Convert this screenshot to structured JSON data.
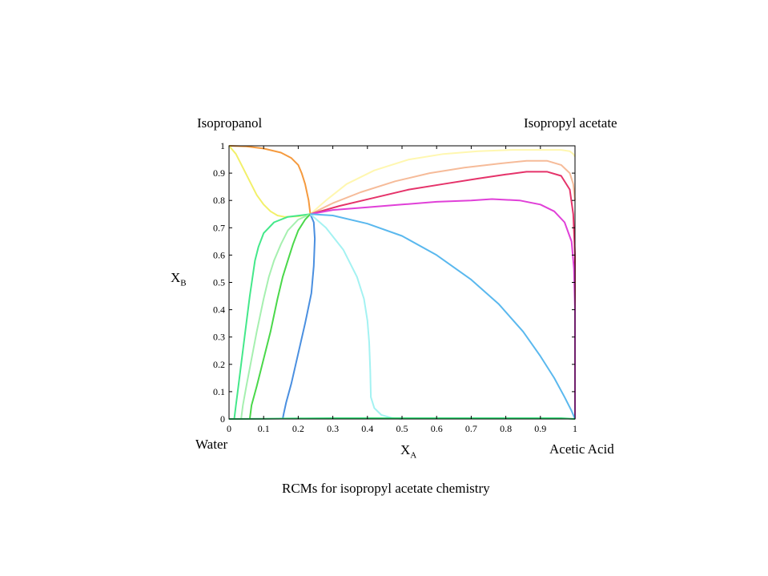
{
  "chart_data": {
    "type": "line",
    "title": "",
    "caption": "RCMs for isopropyl acetate chemistry",
    "xlabel": {
      "text": "X",
      "sub": "A"
    },
    "ylabel": {
      "text": "X",
      "sub": "B"
    },
    "xlim": [
      0,
      1
    ],
    "ylim": [
      0,
      1
    ],
    "grid": false,
    "xticks": [
      "0",
      "0.1",
      "0.2",
      "0.3",
      "0.4",
      "0.5",
      "0.6",
      "0.7",
      "0.8",
      "0.9",
      "1"
    ],
    "yticks": [
      "0",
      "0.1",
      "0.2",
      "0.3",
      "0.4",
      "0.5",
      "0.6",
      "0.7",
      "0.8",
      "0.9",
      "1"
    ],
    "corners": {
      "top_left": "Isopropanol",
      "top_right": "Isopropyl acetate",
      "bottom_left": "Water",
      "bottom_right": "Acetic Acid"
    },
    "series": [
      {
        "color": "#fff7b0",
        "x": [
          0.235,
          0.28,
          0.34,
          0.42,
          0.52,
          0.62,
          0.72,
          0.82,
          0.9,
          0.96,
          0.985,
          0.995,
          1.0
        ],
        "y": [
          0.75,
          0.8,
          0.86,
          0.91,
          0.95,
          0.97,
          0.98,
          0.985,
          0.985,
          0.985,
          0.98,
          0.97,
          0.96
        ]
      },
      {
        "color": "#f6bb99",
        "x": [
          0.235,
          0.3,
          0.38,
          0.48,
          0.58,
          0.68,
          0.78,
          0.86,
          0.92,
          0.96,
          0.985,
          0.995,
          1.0
        ],
        "y": [
          0.75,
          0.79,
          0.83,
          0.87,
          0.9,
          0.92,
          0.935,
          0.945,
          0.945,
          0.93,
          0.9,
          0.86,
          0.8
        ]
      },
      {
        "color": "#e5336a",
        "x": [
          0.235,
          0.32,
          0.42,
          0.52,
          0.62,
          0.72,
          0.8,
          0.86,
          0.92,
          0.96,
          0.985,
          0.995,
          1.0,
          1.0,
          1.0
        ],
        "y": [
          0.75,
          0.78,
          0.81,
          0.84,
          0.86,
          0.88,
          0.895,
          0.905,
          0.905,
          0.89,
          0.84,
          0.75,
          0.6,
          0.3,
          0.0
        ]
      },
      {
        "color": "#e040d8",
        "x": [
          0.235,
          0.3,
          0.4,
          0.5,
          0.6,
          0.7,
          0.76,
          0.84,
          0.9,
          0.94,
          0.97,
          0.99,
          0.997,
          1.0,
          1.0
        ],
        "y": [
          0.75,
          0.765,
          0.775,
          0.785,
          0.795,
          0.8,
          0.805,
          0.8,
          0.785,
          0.76,
          0.72,
          0.65,
          0.55,
          0.4,
          0.0
        ]
      },
      {
        "color": "#f59a3e",
        "x": [
          0.0,
          0.05,
          0.1,
          0.15,
          0.18,
          0.2,
          0.21,
          0.22,
          0.23,
          0.235
        ],
        "y": [
          1.0,
          0.998,
          0.99,
          0.975,
          0.955,
          0.93,
          0.9,
          0.86,
          0.8,
          0.75
        ]
      },
      {
        "color": "#f2f06a",
        "x": [
          0.0,
          0.02,
          0.04,
          0.06,
          0.08,
          0.1,
          0.12,
          0.14,
          0.16,
          0.2,
          0.235
        ],
        "y": [
          1.0,
          0.97,
          0.92,
          0.87,
          0.82,
          0.785,
          0.76,
          0.745,
          0.74,
          0.742,
          0.75
        ]
      },
      {
        "color": "#44e88a",
        "x": [
          0.235,
          0.17,
          0.13,
          0.1,
          0.085,
          0.075,
          0.06,
          0.045,
          0.035,
          0.025,
          0.02,
          0.015
        ],
        "y": [
          0.75,
          0.74,
          0.72,
          0.68,
          0.63,
          0.58,
          0.45,
          0.3,
          0.2,
          0.1,
          0.05,
          0.0
        ]
      },
      {
        "color": "#a6f0b0",
        "x": [
          0.235,
          0.2,
          0.17,
          0.15,
          0.13,
          0.115,
          0.1,
          0.08,
          0.065,
          0.05,
          0.04,
          0.035
        ],
        "y": [
          0.75,
          0.73,
          0.69,
          0.64,
          0.58,
          0.52,
          0.44,
          0.32,
          0.22,
          0.12,
          0.05,
          0.0
        ]
      },
      {
        "color": "#4ad84a",
        "x": [
          0.235,
          0.22,
          0.2,
          0.185,
          0.17,
          0.155,
          0.14,
          0.12,
          0.1,
          0.08,
          0.065,
          0.06
        ],
        "y": [
          0.75,
          0.73,
          0.69,
          0.64,
          0.58,
          0.52,
          0.44,
          0.32,
          0.22,
          0.12,
          0.05,
          0.0
        ]
      },
      {
        "color": "#4a8fe0",
        "x": [
          0.235,
          0.245,
          0.248,
          0.245,
          0.238,
          0.22,
          0.2,
          0.18,
          0.165,
          0.158,
          0.155
        ],
        "y": [
          0.75,
          0.72,
          0.66,
          0.56,
          0.46,
          0.35,
          0.24,
          0.13,
          0.06,
          0.02,
          0.0
        ]
      },
      {
        "color": "#a4f2f2",
        "x": [
          0.235,
          0.28,
          0.33,
          0.37,
          0.39,
          0.4,
          0.405,
          0.408,
          0.41,
          0.42,
          0.44,
          0.47,
          0.5
        ],
        "y": [
          0.75,
          0.7,
          0.62,
          0.52,
          0.44,
          0.36,
          0.28,
          0.18,
          0.08,
          0.04,
          0.015,
          0.004,
          0.0
        ]
      },
      {
        "color": "#5ab8ee",
        "x": [
          0.235,
          0.3,
          0.4,
          0.5,
          0.6,
          0.7,
          0.78,
          0.85,
          0.9,
          0.94,
          0.97,
          0.99,
          1.0
        ],
        "y": [
          0.75,
          0.745,
          0.715,
          0.67,
          0.6,
          0.51,
          0.42,
          0.32,
          0.23,
          0.15,
          0.08,
          0.03,
          0.0
        ]
      },
      {
        "color": "#33dd77",
        "x": [
          0.0,
          0.1,
          0.2,
          0.3,
          0.4,
          0.5,
          0.6,
          0.7,
          0.8,
          0.9,
          0.96,
          1.0
        ],
        "y": [
          0.0,
          0.001,
          0.002,
          0.003,
          0.003,
          0.003,
          0.003,
          0.003,
          0.003,
          0.003,
          0.003,
          0.0
        ]
      }
    ]
  }
}
